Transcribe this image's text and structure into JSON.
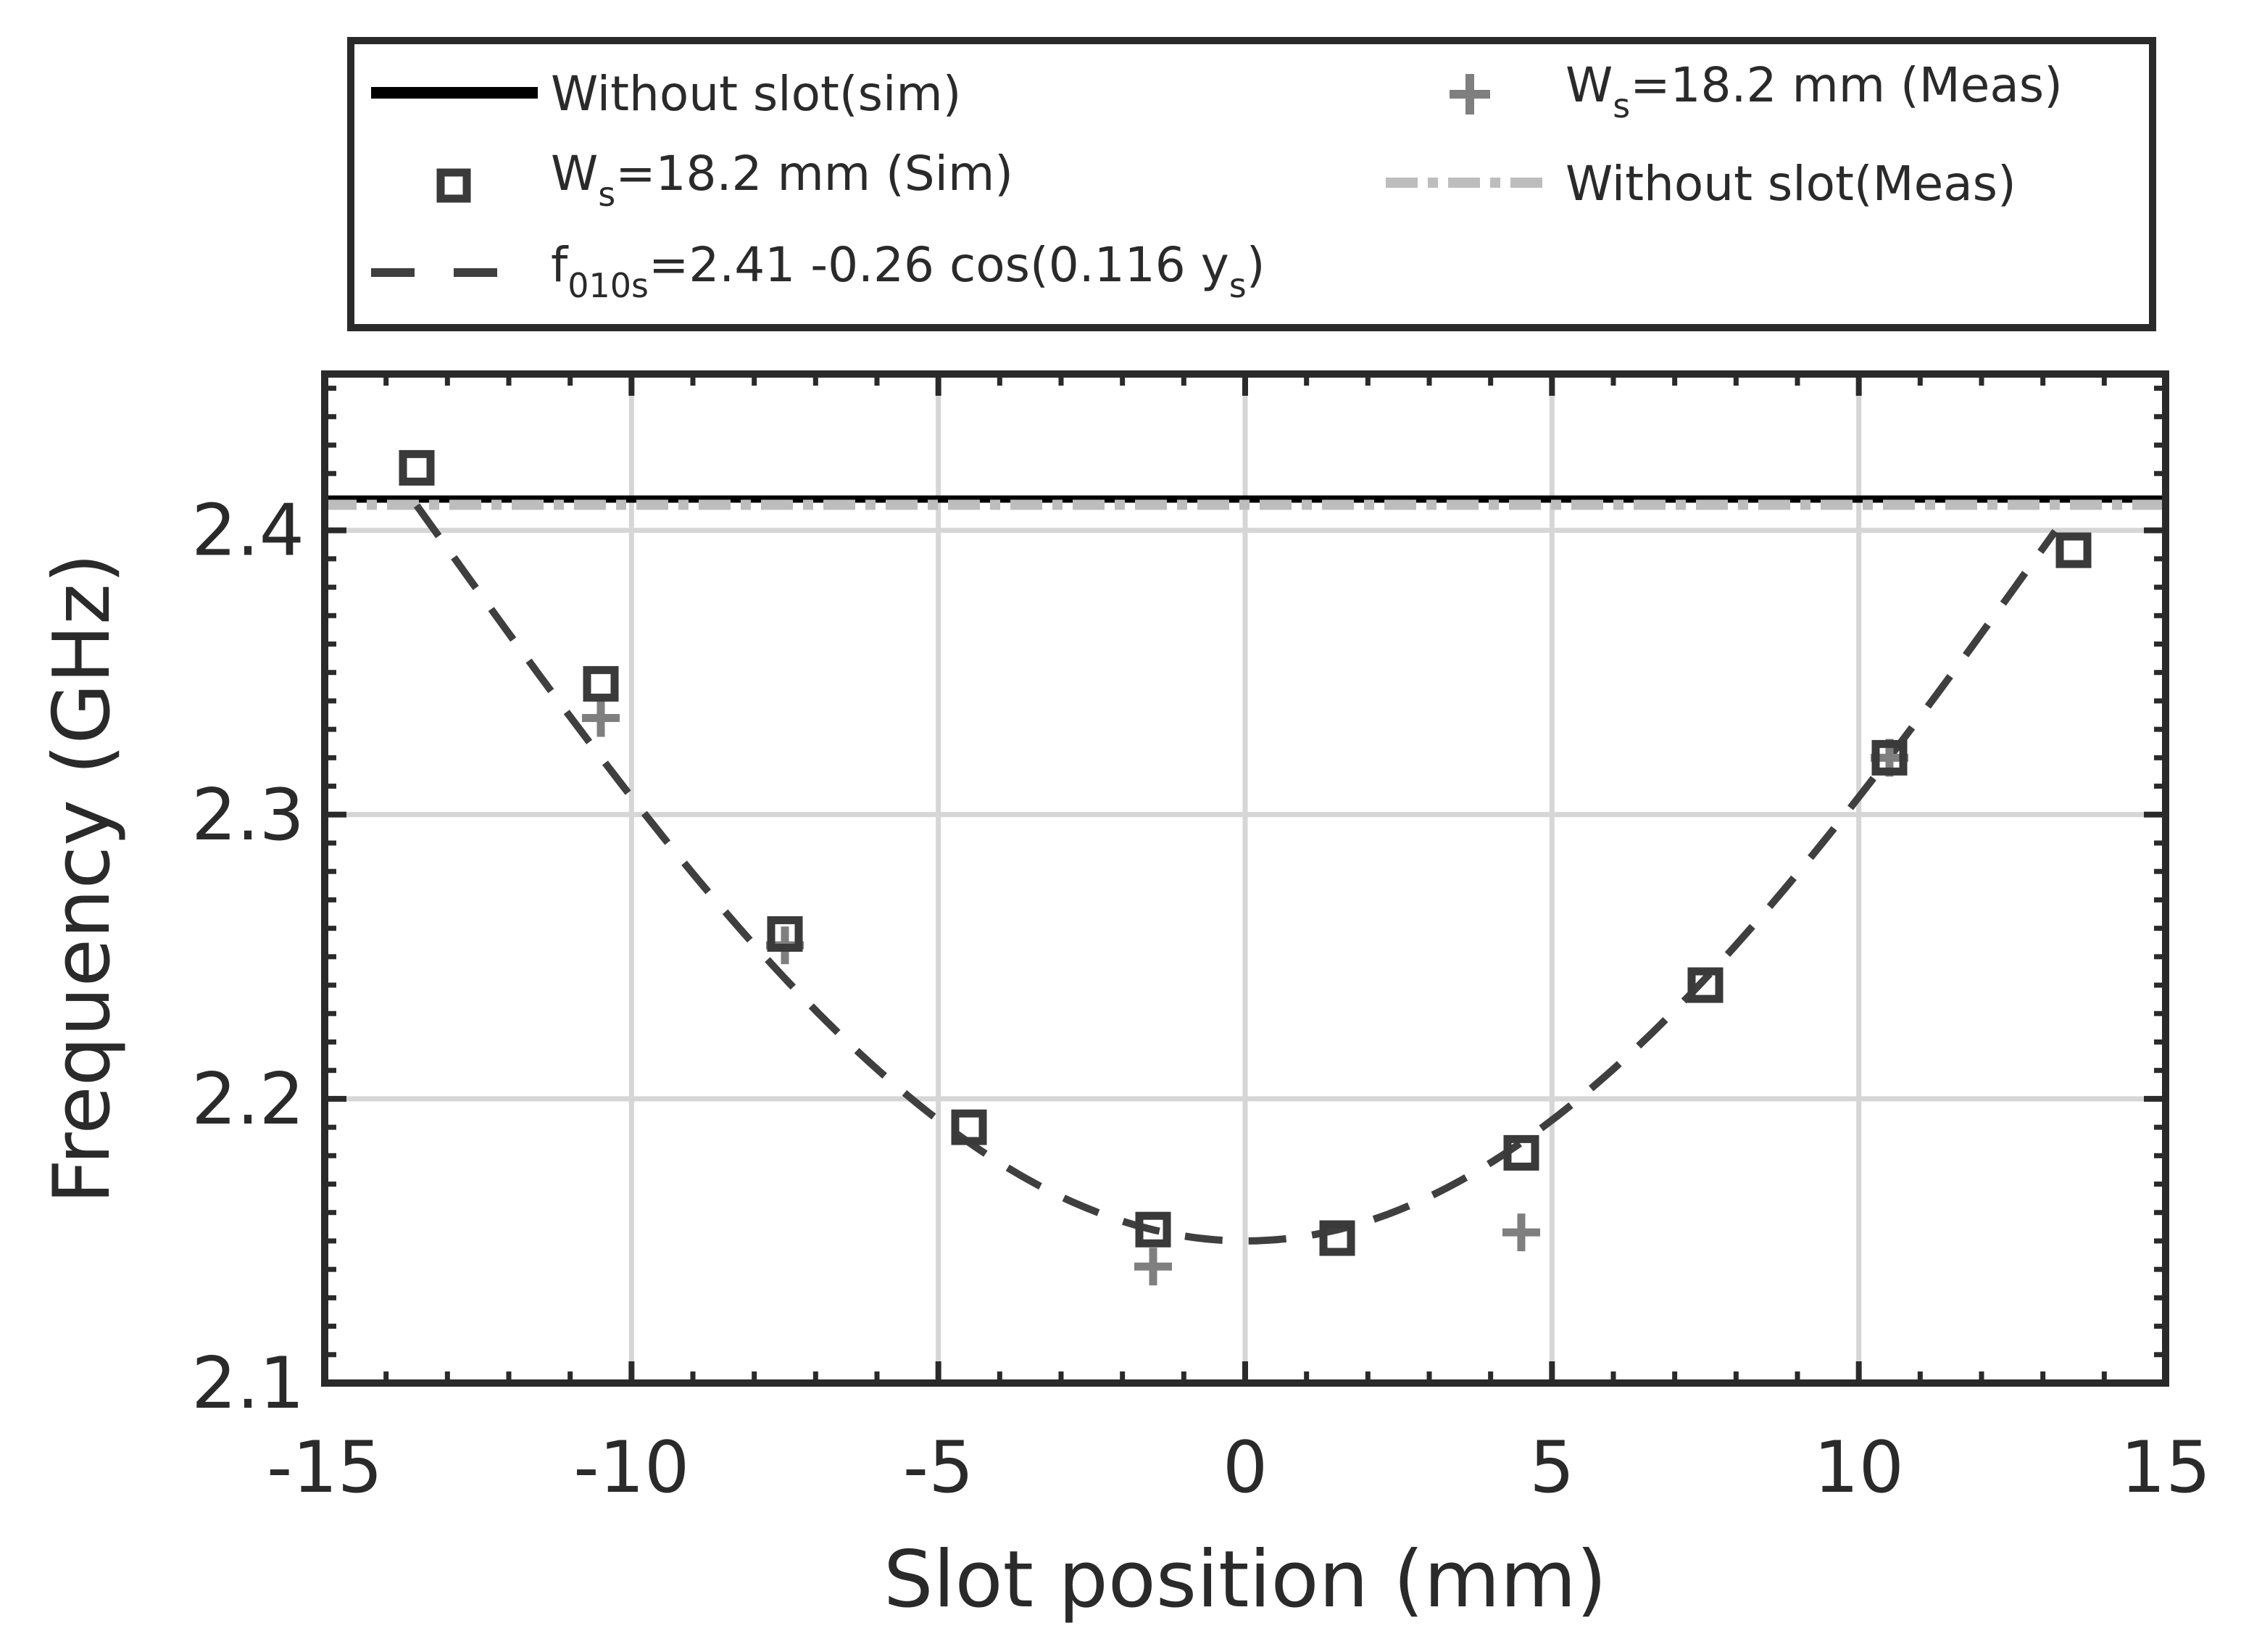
{
  "chart_data": {
    "type": "scatter",
    "title": "",
    "xlabel": "Slot position (mm)",
    "ylabel": "Frequency (GHz)",
    "xlim": [
      -15,
      15
    ],
    "ylim": [
      2.1,
      2.455
    ],
    "xticks": [
      -15,
      -10,
      -5,
      0,
      5,
      10,
      15
    ],
    "xtick_labels": [
      "-15",
      "-10",
      "-5",
      "0",
      "5",
      "10",
      "15"
    ],
    "yticks": [
      2.1,
      2.2,
      2.3,
      2.4
    ],
    "ytick_labels": [
      "2.1",
      "2.2",
      "2.3",
      "2.4"
    ],
    "grid": true,
    "legend_position": "top, outside the axes",
    "series": [
      {
        "name": "Without slot(sim)",
        "kind": "hline",
        "y": 2.411,
        "color": "#000000",
        "style": "solid"
      },
      {
        "name": "Without slot(Meas)",
        "kind": "hline",
        "y": 2.409,
        "color": "#bdbdbd",
        "style": "dash-dot"
      },
      {
        "name": "W_s=18.2 mm (Sim)",
        "kind": "markers",
        "marker": "square",
        "color": "#3a3a3a",
        "x": [
          -13.5,
          -10.5,
          -7.5,
          -4.5,
          -1.5,
          1.5,
          4.5,
          7.5,
          10.5,
          13.5
        ],
        "y": [
          2.422,
          2.346,
          2.258,
          2.19,
          2.154,
          2.151,
          2.181,
          2.24,
          2.32,
          2.393
        ]
      },
      {
        "name": "W_s=18.2 mm (Meas)",
        "kind": "markers",
        "marker": "plus",
        "color": "#7f7f7f",
        "x": [
          -10.5,
          -7.5,
          -1.5,
          4.5,
          10.5
        ],
        "y": [
          2.334,
          2.254,
          2.141,
          2.153,
          2.32
        ]
      },
      {
        "name": "f_010s=2.41 -0.26 cos(0.116 y_s)",
        "kind": "curve",
        "formula": "2.41 - 0.26*cos(0.116*y)",
        "x_range": [
          -13.5,
          13.2
        ],
        "color": "#3f3f3f",
        "style": "dashed"
      }
    ],
    "legend": {
      "without_slot_sim": "Without slot(sim)",
      "sim_prefix": "W",
      "sim_sub": "s",
      "sim_suffix": "=18.2 mm (Sim)",
      "fit_prefix": "f",
      "fit_sub": "010s",
      "fit_mid": "=2.41 -0.26 cos(0.116 y",
      "fit_sub2": "s",
      "fit_end": ")",
      "meas_prefix": "W",
      "meas_sub": "s",
      "meas_suffix": "=18.2 mm (Meas)",
      "without_slot_meas": "Without slot(Meas)"
    }
  }
}
